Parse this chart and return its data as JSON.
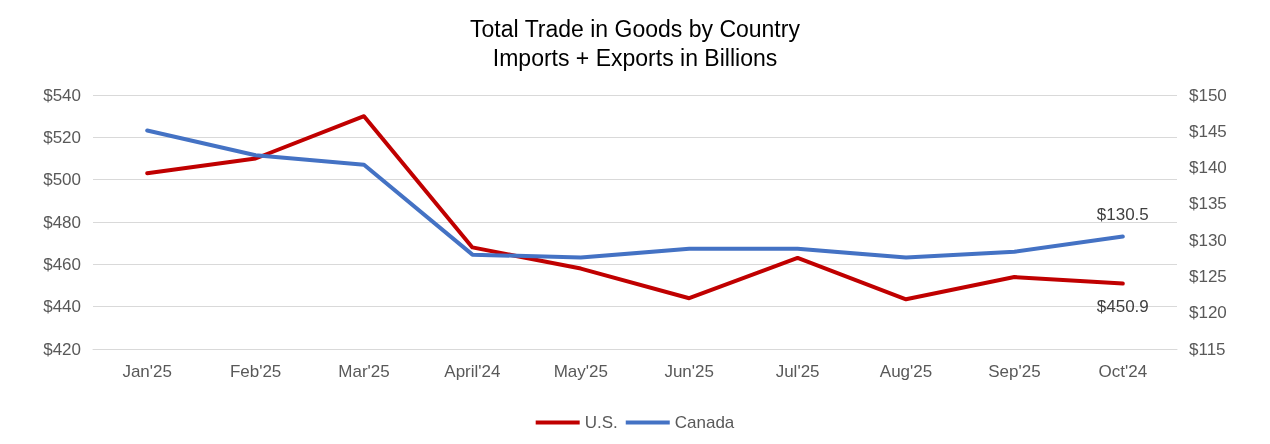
{
  "chart_data": {
    "type": "line",
    "title": "Total Trade in Goods by Country",
    "subtitle": "Imports + Exports in Billions",
    "categories": [
      "Jan'25",
      "Feb'25",
      "Mar'25",
      "April'24",
      "May'25",
      "Jun'25",
      "Jul'25",
      "Aug'25",
      "Sep'25",
      "Oct'24"
    ],
    "series": [
      {
        "name": "U.S.",
        "color": "#c00000",
        "values": [
          503,
          510,
          530,
          468,
          458,
          444,
          463,
          443.5,
          454,
          450.9
        ],
        "value_labels": [
          null,
          null,
          null,
          null,
          null,
          null,
          null,
          null,
          null,
          "$450.9"
        ]
      },
      {
        "name": "Canada",
        "color": "#4472c4",
        "axis": "y2",
        "values": [
          145.1,
          141.7,
          140.4,
          128,
          127.6,
          128.8,
          128.8,
          127.6,
          128.4,
          130.5
        ],
        "value_labels": [
          null,
          null,
          null,
          null,
          null,
          null,
          null,
          null,
          null,
          "$130.5"
        ]
      }
    ],
    "ylim": [
      420,
      540
    ],
    "yticks": [
      {
        "value": 420,
        "label": "$420"
      },
      {
        "value": 440,
        "label": "$440"
      },
      {
        "value": 460,
        "label": "$460"
      },
      {
        "value": 480,
        "label": "$480"
      },
      {
        "value": 500,
        "label": "$500"
      },
      {
        "value": 520,
        "label": "$520"
      },
      {
        "value": 540,
        "label": "$540"
      }
    ],
    "y2lim": [
      115,
      150
    ],
    "y2ticks": [
      {
        "value": 115,
        "label": "$115"
      },
      {
        "value": 120,
        "label": "$120"
      },
      {
        "value": 125,
        "label": "$125"
      },
      {
        "value": 130,
        "label": "$130"
      },
      {
        "value": 135,
        "label": "$135"
      },
      {
        "value": 140,
        "label": "$140"
      },
      {
        "value": 145,
        "label": "$145"
      },
      {
        "value": 150,
        "label": "$150"
      }
    ],
    "grid": "y",
    "legend": "bottom",
    "marker": "none",
    "line_style": "solid"
  }
}
